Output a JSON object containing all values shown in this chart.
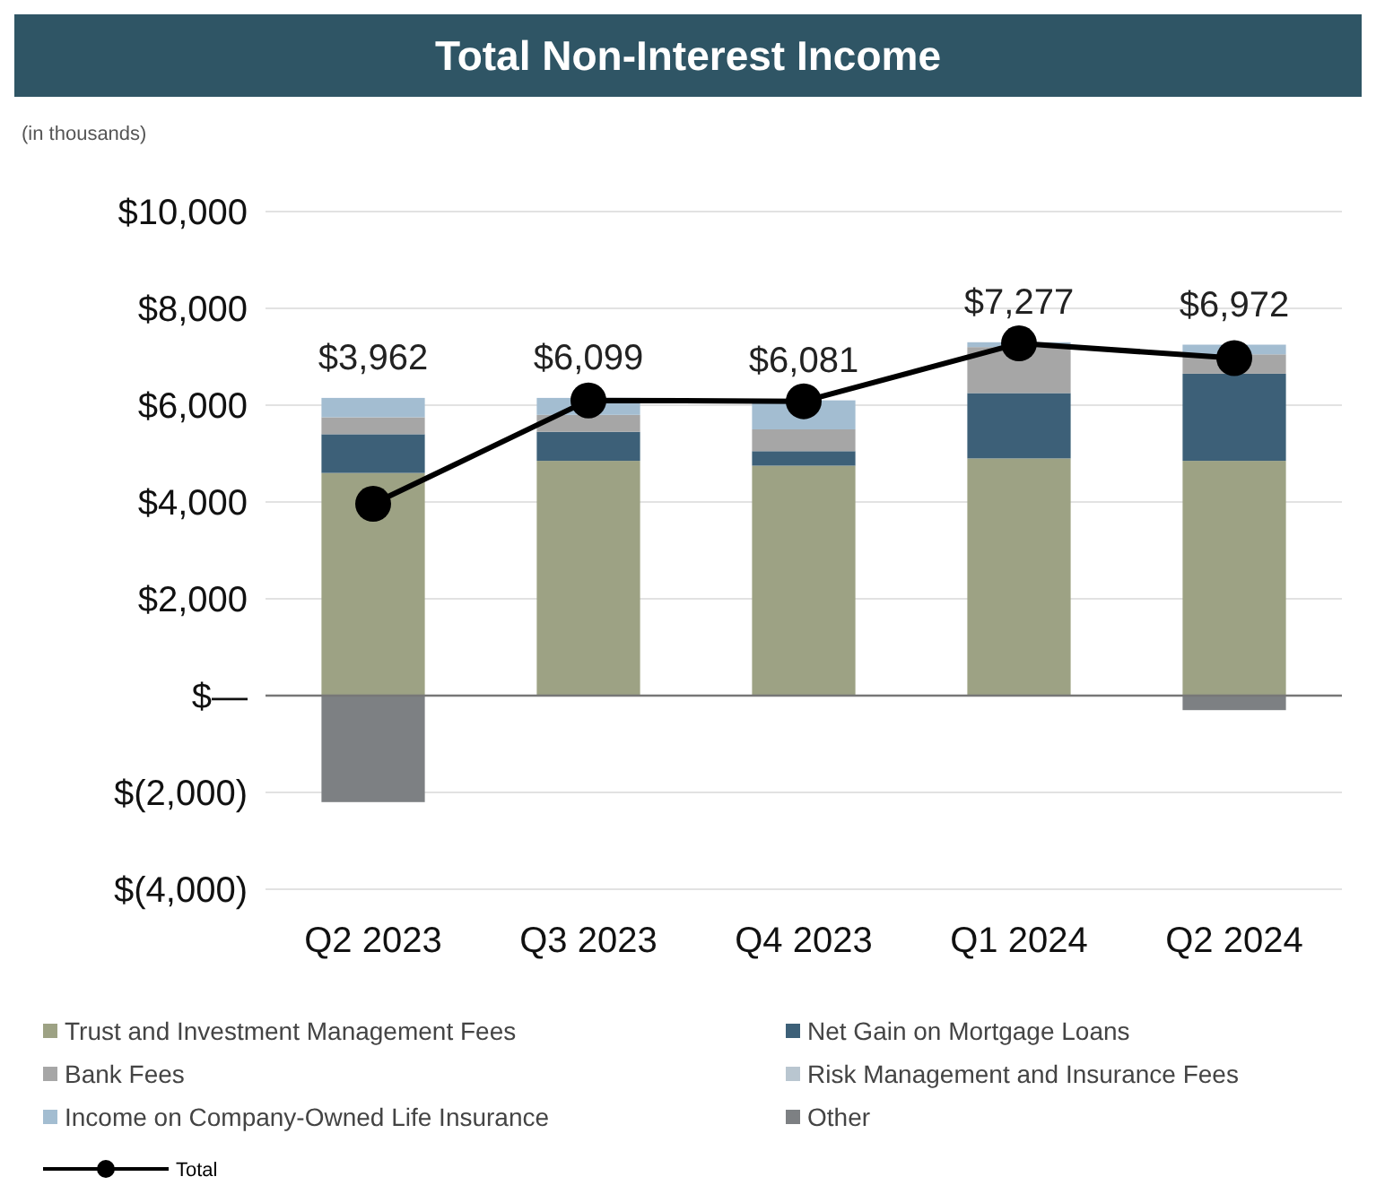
{
  "chart_data": {
    "type": "bar",
    "stacked": true,
    "title": "Total Non-Interest Income",
    "subtitle": "(in thousands)",
    "categories": [
      "Q2 2023",
      "Q3 2023",
      "Q4 2023",
      "Q1 2024",
      "Q2 2024"
    ],
    "series": [
      {
        "name": "Trust and Investment Management Fees",
        "color": "#9da284",
        "values": [
          4600,
          4850,
          4750,
          4900,
          4850
        ]
      },
      {
        "name": "Net Gain on Mortgage Loans",
        "color": "#3d6078",
        "values": [
          800,
          600,
          300,
          1350,
          1800
        ]
      },
      {
        "name": "Bank Fees",
        "color": "#a6a6a6",
        "values": [
          350,
          350,
          450,
          950,
          400
        ]
      },
      {
        "name": "Risk Management and Insurance Fees",
        "color": "#b9c6d0",
        "values": [
          null,
          null,
          null,
          null,
          null
        ]
      },
      {
        "name": "Income on Company-Owned Life Insurance",
        "color": "#a3bdd1",
        "values": [
          400,
          350,
          600,
          100,
          200
        ]
      },
      {
        "name": "Other",
        "color": "#7d8083",
        "values": [
          -2200,
          null,
          null,
          null,
          -300
        ]
      },
      {
        "name": "Total",
        "type": "line",
        "color": "#000000",
        "marker": "circle",
        "values": [
          3962,
          6099,
          6081,
          7277,
          6972
        ],
        "value_labels": [
          "$3,962",
          "$6,099",
          "$6,081",
          "$7,277",
          "$6,972"
        ]
      }
    ],
    "ylim": [
      -4000,
      10000
    ],
    "yticks": [
      {
        "value": -4000,
        "label": "$(4,000)"
      },
      {
        "value": -2000,
        "label": "$(2,000)"
      },
      {
        "value": 0,
        "label": "$—"
      },
      {
        "value": 2000,
        "label": "$2,000"
      },
      {
        "value": 4000,
        "label": "$4,000"
      },
      {
        "value": 6000,
        "label": "$6,000"
      },
      {
        "value": 8000,
        "label": "$8,000"
      },
      {
        "value": 10000,
        "label": "$10,000"
      }
    ],
    "grid": "y",
    "legend": "bottom"
  }
}
